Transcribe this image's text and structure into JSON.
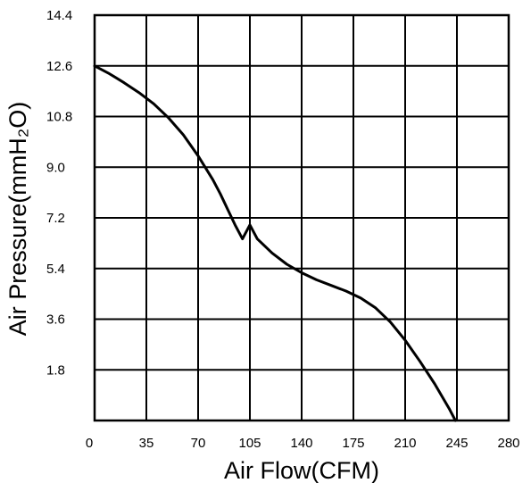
{
  "chart_data": {
    "type": "line",
    "xlabel": "Air Flow(CFM)",
    "ylabel": "Air Pressure(mmH₂O)",
    "xlim": [
      0,
      280
    ],
    "ylim": [
      0,
      14.4
    ],
    "x_ticks": [
      "0",
      "35",
      "70",
      "105",
      "140",
      "175",
      "210",
      "245",
      "280"
    ],
    "y_ticks": [
      "1.8",
      "3.6",
      "5.4",
      "7.2",
      "9.0",
      "10.8",
      "12.6",
      "14.4"
    ],
    "grid": true,
    "series": [
      {
        "x": [
          0,
          10,
          20,
          30,
          40,
          50,
          60,
          70,
          80,
          85,
          90,
          95,
          100,
          105,
          110,
          120,
          130,
          140,
          150,
          160,
          170,
          180,
          190,
          200,
          210,
          220,
          230,
          240,
          244
        ],
        "y": [
          12.6,
          12.32,
          12.0,
          11.65,
          11.25,
          10.75,
          10.15,
          9.4,
          8.55,
          8.05,
          7.5,
          6.95,
          6.45,
          6.95,
          6.45,
          5.95,
          5.55,
          5.25,
          5.0,
          4.8,
          4.6,
          4.35,
          4.0,
          3.5,
          2.85,
          2.1,
          1.3,
          0.4,
          0.0
        ]
      }
    ]
  }
}
